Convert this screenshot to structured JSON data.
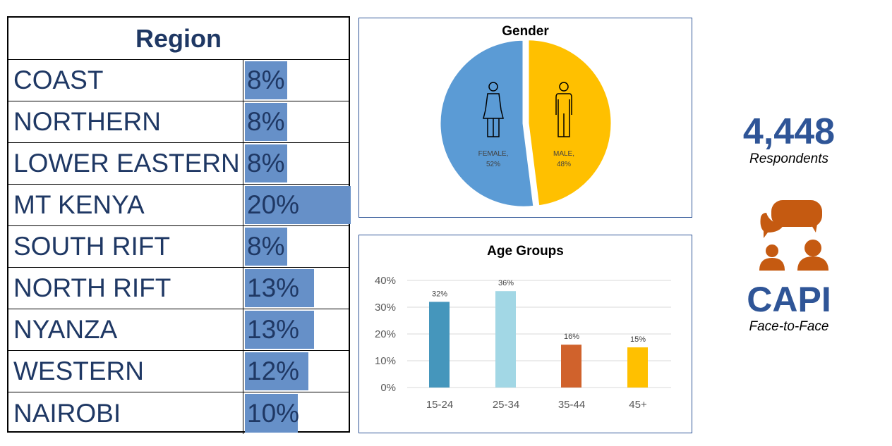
{
  "region": {
    "title": "Region",
    "rows": [
      {
        "name": "COAST",
        "label": "8%",
        "value": 8
      },
      {
        "name": "NORTHERN",
        "label": "8%",
        "value": 8
      },
      {
        "name": "LOWER EASTERN",
        "label": "8%",
        "value": 8
      },
      {
        "name": "MT KENYA",
        "label": "20%",
        "value": 20
      },
      {
        "name": "SOUTH RIFT",
        "label": "8%",
        "value": 8
      },
      {
        "name": "NORTH RIFT",
        "label": "13%",
        "value": 13
      },
      {
        "name": "NYANZA",
        "label": "13%",
        "value": 13
      },
      {
        "name": "WESTERN",
        "label": "12%",
        "value": 12
      },
      {
        "name": "NAIROBI",
        "label": "10%",
        "value": 10
      }
    ]
  },
  "chart_data": [
    {
      "type": "pie",
      "title": "Gender",
      "slices": [
        {
          "label": "FEMALE,",
          "pct": "52%",
          "value": 52,
          "color": "#5b9bd5"
        },
        {
          "label": "MALE,",
          "pct": "48%",
          "value": 48,
          "color": "#ffc000"
        }
      ]
    },
    {
      "type": "bar",
      "title": "Age Groups",
      "categories": [
        "15-24",
        "25-34",
        "35-44",
        "45+"
      ],
      "values": [
        32,
        36,
        16,
        15
      ],
      "labels": [
        "32%",
        "36%",
        "16%",
        "15%"
      ],
      "colors": [
        "#4596bc",
        "#a2d7e5",
        "#d0622c",
        "#ffc000"
      ],
      "ylim": [
        0,
        40
      ],
      "yticks": [
        "0%",
        "10%",
        "20%",
        "30%",
        "40%"
      ],
      "grid": true
    }
  ],
  "summary": {
    "count": "4,448",
    "count_label": "Respondents",
    "method": "CAPI",
    "method_label": "Face-to-Face",
    "accent": "#c55a11"
  }
}
